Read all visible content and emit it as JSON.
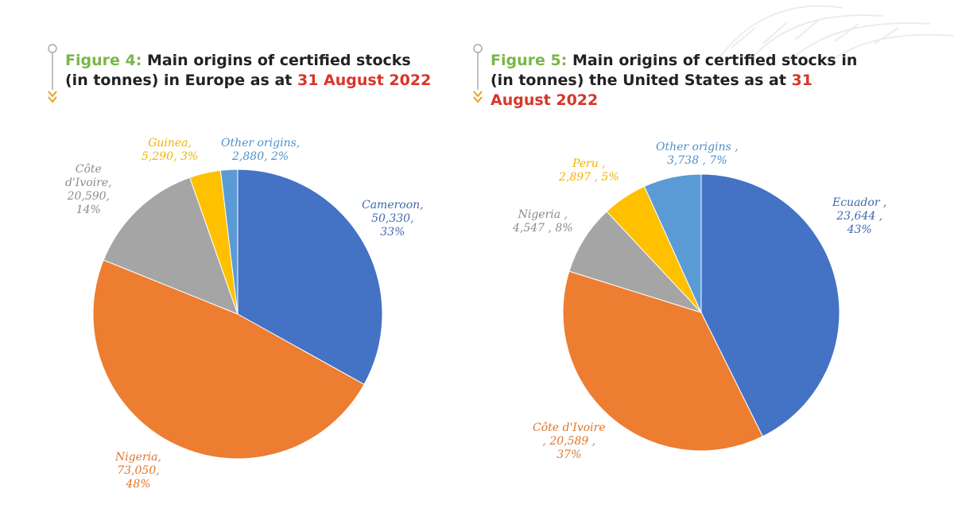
{
  "figures": [
    {
      "number": "Figure 4:",
      "title_text": "Main origins of certified stocks (in tonnes) in Europe as at",
      "date": "31 August 2022",
      "labels": [
        {
          "name": "Cameroon,",
          "value": "50,330,",
          "pct": "33%"
        },
        {
          "name": "Nigeria,",
          "value": "73,050,",
          "pct": "48%"
        },
        {
          "name": "Côte",
          "value": "d'Ivoire,",
          "extra": "20,590,",
          "pct": "14%"
        },
        {
          "name": "Guinea,",
          "value": "5,290, 3%"
        },
        {
          "name": "Other origins,",
          "value": "2,880, 2%"
        }
      ]
    },
    {
      "number": "Figure 5:",
      "title_text": "Main origins of certified stocks in (in tonnes) the United States as at",
      "date": "31 August 2022",
      "labels": [
        {
          "name": "Ecuador ,",
          "value": "23,644 ,",
          "pct": "43%"
        },
        {
          "name": "Côte d'Ivoire",
          "value": ", 20,589 ,",
          "pct": "37%"
        },
        {
          "name": "Nigeria ,",
          "value": "4,547 , 8%"
        },
        {
          "name": "Peru ,",
          "value": "2,897 , 5%"
        },
        {
          "name": "Other origins ,",
          "value": "3,738 , 7%"
        }
      ]
    }
  ],
  "chart_data": [
    {
      "type": "pie",
      "title": "Main origins of certified stocks (in tonnes) in Europe as at 31 August 2022",
      "categories": [
        "Cameroon",
        "Nigeria",
        "Côte d'Ivoire",
        "Guinea",
        "Other origins"
      ],
      "values": [
        50330,
        73050,
        20590,
        5290,
        2880
      ],
      "percentages": [
        33,
        48,
        14,
        3,
        2
      ],
      "colors": [
        "#4472c4",
        "#ed7d31",
        "#a5a5a5",
        "#ffc000",
        "#5b9bd5"
      ]
    },
    {
      "type": "pie",
      "title": "Main origins of certified stocks in (in tonnes) the United States as at 31 August 2022",
      "categories": [
        "Ecuador",
        "Côte d'Ivoire",
        "Nigeria",
        "Peru",
        "Other origins"
      ],
      "values": [
        23644,
        20589,
        4547,
        2897,
        3738
      ],
      "percentages": [
        43,
        37,
        8,
        5,
        7
      ],
      "colors": [
        "#4472c4",
        "#ed7d31",
        "#a5a5a5",
        "#ffc000",
        "#5b9bd5"
      ]
    }
  ]
}
